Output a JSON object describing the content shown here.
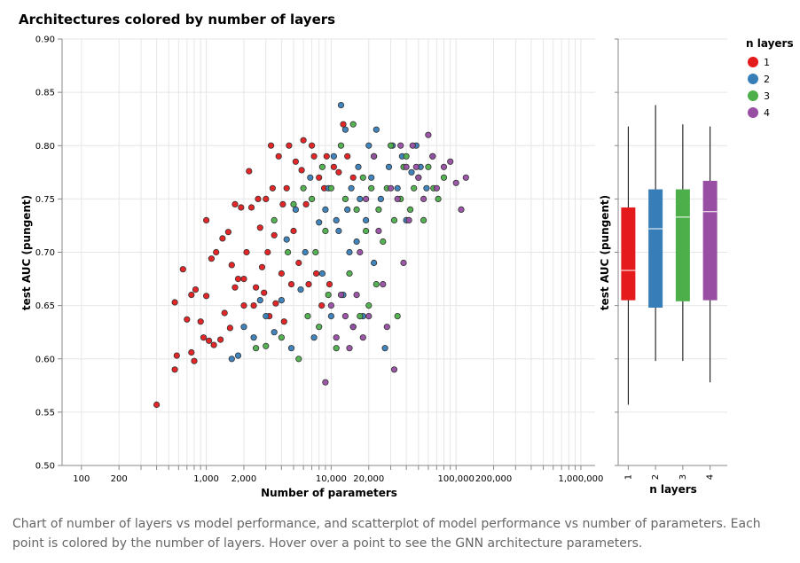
{
  "chart_data": [
    {
      "type": "scatter",
      "title": "Architectures colored by number of layers",
      "xlabel": "Number of parameters",
      "ylabel": "test AUC (pungent)",
      "x_scale": "log",
      "xlim": [
        70,
        1300000
      ],
      "ylim": [
        0.5,
        0.9
      ],
      "y_ticks": [
        "0.50",
        "0.55",
        "0.60",
        "0.65",
        "0.70",
        "0.75",
        "0.80",
        "0.85",
        "0.90"
      ],
      "x_tick_labels": [
        {
          "value": 100,
          "label": "100"
        },
        {
          "value": 200,
          "label": "200"
        },
        {
          "value": 1000,
          "label": "1,000"
        },
        {
          "value": 2000,
          "label": "2,000"
        },
        {
          "value": 10000,
          "label": "10,000"
        },
        {
          "value": 20000,
          "label": "20,000"
        },
        {
          "value": 100000,
          "label": "100,000"
        },
        {
          "value": 200000,
          "label": "200,000"
        },
        {
          "value": 1000000,
          "label": "1,000,000"
        }
      ],
      "grid": true,
      "series": [
        {
          "name": "1",
          "color": "#e41a1c",
          "points": [
            [
              400,
              0.557
            ],
            [
              560,
              0.59
            ],
            [
              580,
              0.603
            ],
            [
              560,
              0.653
            ],
            [
              650,
              0.684
            ],
            [
              700,
              0.637
            ],
            [
              760,
              0.606
            ],
            [
              800,
              0.598
            ],
            [
              760,
              0.66
            ],
            [
              820,
              0.665
            ],
            [
              900,
              0.635
            ],
            [
              950,
              0.62
            ],
            [
              1000,
              0.73
            ],
            [
              1000,
              0.659
            ],
            [
              1050,
              0.617
            ],
            [
              1100,
              0.694
            ],
            [
              1150,
              0.613
            ],
            [
              1200,
              0.7
            ],
            [
              1300,
              0.618
            ],
            [
              1350,
              0.713
            ],
            [
              1400,
              0.643
            ],
            [
              1500,
              0.719
            ],
            [
              1550,
              0.629
            ],
            [
              1600,
              0.688
            ],
            [
              1700,
              0.745
            ],
            [
              1700,
              0.667
            ],
            [
              1800,
              0.675
            ],
            [
              1900,
              0.742
            ],
            [
              2000,
              0.675
            ],
            [
              2000,
              0.65
            ],
            [
              2100,
              0.7
            ],
            [
              2200,
              0.776
            ],
            [
              2300,
              0.742
            ],
            [
              2400,
              0.65
            ],
            [
              2500,
              0.667
            ],
            [
              2600,
              0.75
            ],
            [
              2700,
              0.723
            ],
            [
              2800,
              0.686
            ],
            [
              2900,
              0.662
            ],
            [
              3000,
              0.75
            ],
            [
              3100,
              0.7
            ],
            [
              3200,
              0.64
            ],
            [
              3300,
              0.8
            ],
            [
              3400,
              0.76
            ],
            [
              3500,
              0.716
            ],
            [
              3600,
              0.652
            ],
            [
              3800,
              0.79
            ],
            [
              4000,
              0.68
            ],
            [
              4100,
              0.745
            ],
            [
              4200,
              0.635
            ],
            [
              4400,
              0.76
            ],
            [
              4600,
              0.8
            ],
            [
              4800,
              0.67
            ],
            [
              5000,
              0.72
            ],
            [
              5200,
              0.785
            ],
            [
              5500,
              0.69
            ],
            [
              5800,
              0.777
            ],
            [
              6000,
              0.805
            ],
            [
              6300,
              0.745
            ],
            [
              6600,
              0.67
            ],
            [
              7000,
              0.8
            ],
            [
              7300,
              0.79
            ],
            [
              7600,
              0.68
            ],
            [
              8000,
              0.77
            ],
            [
              8400,
              0.65
            ],
            [
              8800,
              0.76
            ],
            [
              9200,
              0.79
            ],
            [
              9700,
              0.67
            ],
            [
              10500,
              0.78
            ],
            [
              11500,
              0.775
            ],
            [
              12500,
              0.82
            ],
            [
              13500,
              0.79
            ],
            [
              15000,
              0.77
            ]
          ]
        },
        {
          "name": "2",
          "color": "#377eb8",
          "points": [
            [
              1600,
              0.6
            ],
            [
              1800,
              0.603
            ],
            [
              2000,
              0.63
            ],
            [
              2400,
              0.62
            ],
            [
              2700,
              0.655
            ],
            [
              3000,
              0.64
            ],
            [
              3500,
              0.625
            ],
            [
              4000,
              0.655
            ],
            [
              4400,
              0.712
            ],
            [
              4800,
              0.61
            ],
            [
              5200,
              0.74
            ],
            [
              5700,
              0.665
            ],
            [
              6200,
              0.7
            ],
            [
              6800,
              0.77
            ],
            [
              7300,
              0.62
            ],
            [
              8000,
              0.728
            ],
            [
              8500,
              0.68
            ],
            [
              9000,
              0.74
            ],
            [
              9500,
              0.76
            ],
            [
              10000,
              0.64
            ],
            [
              10500,
              0.79
            ],
            [
              11000,
              0.73
            ],
            [
              11500,
              0.72
            ],
            [
              12000,
              0.838
            ],
            [
              12500,
              0.66
            ],
            [
              13000,
              0.815
            ],
            [
              13500,
              0.74
            ],
            [
              14000,
              0.7
            ],
            [
              14500,
              0.76
            ],
            [
              15000,
              0.63
            ],
            [
              16000,
              0.71
            ],
            [
              16500,
              0.78
            ],
            [
              17000,
              0.75
            ],
            [
              18000,
              0.64
            ],
            [
              19000,
              0.73
            ],
            [
              20000,
              0.8
            ],
            [
              21000,
              0.77
            ],
            [
              22000,
              0.69
            ],
            [
              23000,
              0.815
            ],
            [
              25000,
              0.75
            ],
            [
              27000,
              0.61
            ],
            [
              29000,
              0.78
            ],
            [
              31000,
              0.8
            ],
            [
              34000,
              0.76
            ],
            [
              37000,
              0.79
            ],
            [
              40000,
              0.73
            ],
            [
              44000,
              0.775
            ],
            [
              48000,
              0.8
            ],
            [
              52000,
              0.78
            ],
            [
              58000,
              0.76
            ],
            [
              65000,
              0.79
            ]
          ]
        },
        {
          "name": "3",
          "color": "#4daf4a",
          "points": [
            [
              2500,
              0.61
            ],
            [
              3000,
              0.612
            ],
            [
              3500,
              0.73
            ],
            [
              4000,
              0.62
            ],
            [
              4500,
              0.7
            ],
            [
              5000,
              0.745
            ],
            [
              5500,
              0.6
            ],
            [
              6000,
              0.76
            ],
            [
              6500,
              0.64
            ],
            [
              7000,
              0.75
            ],
            [
              7500,
              0.7
            ],
            [
              8000,
              0.63
            ],
            [
              8500,
              0.78
            ],
            [
              9000,
              0.72
            ],
            [
              9500,
              0.66
            ],
            [
              10000,
              0.76
            ],
            [
              11000,
              0.61
            ],
            [
              12000,
              0.8
            ],
            [
              13000,
              0.75
            ],
            [
              14000,
              0.68
            ],
            [
              15000,
              0.82
            ],
            [
              16000,
              0.74
            ],
            [
              17000,
              0.64
            ],
            [
              18000,
              0.77
            ],
            [
              19000,
              0.72
            ],
            [
              20000,
              0.65
            ],
            [
              21000,
              0.76
            ],
            [
              22000,
              0.79
            ],
            [
              23000,
              0.67
            ],
            [
              24000,
              0.74
            ],
            [
              26000,
              0.71
            ],
            [
              28000,
              0.76
            ],
            [
              30000,
              0.8
            ],
            [
              32000,
              0.73
            ],
            [
              34000,
              0.64
            ],
            [
              36000,
              0.75
            ],
            [
              38000,
              0.78
            ],
            [
              40000,
              0.79
            ],
            [
              43000,
              0.74
            ],
            [
              46000,
              0.76
            ],
            [
              50000,
              0.77
            ],
            [
              55000,
              0.73
            ],
            [
              60000,
              0.78
            ],
            [
              66000,
              0.76
            ],
            [
              72000,
              0.75
            ],
            [
              80000,
              0.77
            ]
          ]
        },
        {
          "name": "4",
          "color": "#984ea3",
          "points": [
            [
              9000,
              0.578
            ],
            [
              10000,
              0.65
            ],
            [
              11000,
              0.62
            ],
            [
              12000,
              0.66
            ],
            [
              13000,
              0.64
            ],
            [
              14000,
              0.61
            ],
            [
              15000,
              0.63
            ],
            [
              16000,
              0.66
            ],
            [
              17000,
              0.7
            ],
            [
              18000,
              0.62
            ],
            [
              19000,
              0.75
            ],
            [
              20000,
              0.64
            ],
            [
              22000,
              0.79
            ],
            [
              24000,
              0.72
            ],
            [
              26000,
              0.67
            ],
            [
              28000,
              0.63
            ],
            [
              30000,
              0.76
            ],
            [
              32000,
              0.59
            ],
            [
              34000,
              0.75
            ],
            [
              36000,
              0.8
            ],
            [
              38000,
              0.69
            ],
            [
              40000,
              0.78
            ],
            [
              42000,
              0.73
            ],
            [
              45000,
              0.8
            ],
            [
              48000,
              0.78
            ],
            [
              50000,
              0.77
            ],
            [
              55000,
              0.75
            ],
            [
              60000,
              0.81
            ],
            [
              65000,
              0.79
            ],
            [
              70000,
              0.76
            ],
            [
              80000,
              0.78
            ],
            [
              90000,
              0.785
            ],
            [
              100000,
              0.765
            ],
            [
              110000,
              0.74
            ],
            [
              120000,
              0.77
            ]
          ]
        }
      ]
    },
    {
      "type": "box",
      "ylabel": "test AUC (pungent)",
      "xlabel": "n layers",
      "ylim": [
        0.5,
        0.9
      ],
      "categories": [
        "1",
        "2",
        "3",
        "4"
      ],
      "boxes": [
        {
          "name": "1",
          "color": "#e41a1c",
          "min": 0.557,
          "q1": 0.655,
          "median": 0.683,
          "q3": 0.742,
          "max": 0.818
        },
        {
          "name": "2",
          "color": "#377eb8",
          "min": 0.598,
          "q1": 0.648,
          "median": 0.722,
          "q3": 0.759,
          "max": 0.838
        },
        {
          "name": "3",
          "color": "#4daf4a",
          "min": 0.598,
          "q1": 0.654,
          "median": 0.733,
          "q3": 0.759,
          "max": 0.82
        },
        {
          "name": "4",
          "color": "#984ea3",
          "min": 0.578,
          "q1": 0.655,
          "median": 0.738,
          "q3": 0.767,
          "max": 0.818
        }
      ]
    }
  ],
  "legend": {
    "title": "n layers",
    "items": [
      {
        "label": "1",
        "color": "#e41a1c"
      },
      {
        "label": "2",
        "color": "#377eb8"
      },
      {
        "label": "3",
        "color": "#4daf4a"
      },
      {
        "label": "4",
        "color": "#984ea3"
      }
    ]
  },
  "caption": "Chart of number of layers vs model performance, and scatterplot of model performance vs number of parameters. Each point is colored by the number of layers. Hover over a point to see the GNN architecture parameters."
}
